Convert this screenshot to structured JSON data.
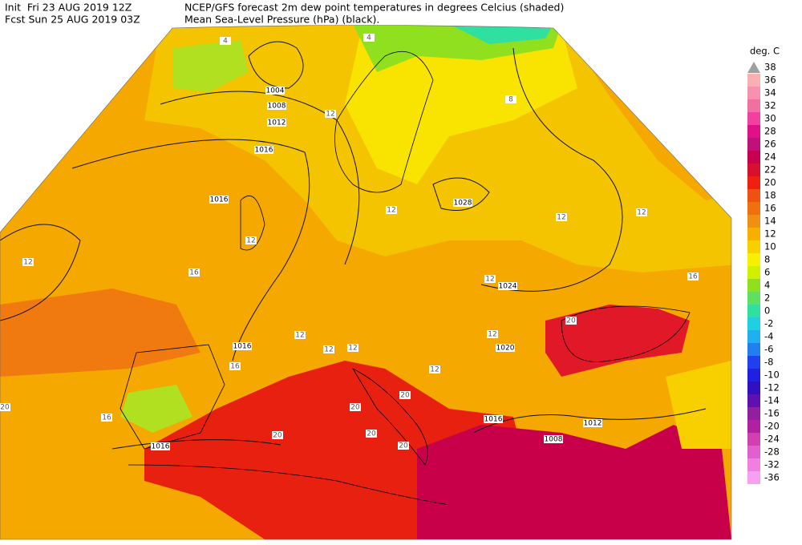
{
  "header": {
    "init": "Init  Fri 23 AUG 2019 12Z",
    "fcst": "Fcst Sun 25 AUG 2019 03Z",
    "title": "NCEP/GFS forecast 2m dew point temperatures in degrees Celcius (shaded)",
    "subtitle": "Mean Sea-Level Pressure (hPa) (black)."
  },
  "legend": {
    "unit": "deg. C",
    "levels": [
      {
        "label": "38",
        "color": "#a0a0a0"
      },
      {
        "label": "36",
        "color": "#f8b0b0"
      },
      {
        "label": "34",
        "color": "#f890b0"
      },
      {
        "label": "32",
        "color": "#f070a0"
      },
      {
        "label": "30",
        "color": "#f040a0"
      },
      {
        "label": "28",
        "color": "#e01088"
      },
      {
        "label": "26",
        "color": "#c0107a"
      },
      {
        "label": "24",
        "color": "#c80050"
      },
      {
        "label": "22",
        "color": "#d81030"
      },
      {
        "label": "20",
        "color": "#f02010"
      },
      {
        "label": "18",
        "color": "#f05010"
      },
      {
        "label": "16",
        "color": "#f07010"
      },
      {
        "label": "14",
        "color": "#f09010"
      },
      {
        "label": "12",
        "color": "#f8b000"
      },
      {
        "label": "10",
        "color": "#f8d000"
      },
      {
        "label": "8",
        "color": "#f8f000"
      },
      {
        "label": "6",
        "color": "#d0f000"
      },
      {
        "label": "4",
        "color": "#90e020"
      },
      {
        "label": "2",
        "color": "#60e060"
      },
      {
        "label": "0",
        "color": "#30e0a0"
      },
      {
        "label": "-2",
        "color": "#20d0e0"
      },
      {
        "label": "-4",
        "color": "#20b0f0"
      },
      {
        "label": "-6",
        "color": "#2080f0"
      },
      {
        "label": "-8",
        "color": "#2040f0"
      },
      {
        "label": "-10",
        "color": "#2020e0"
      },
      {
        "label": "-12",
        "color": "#3010c0"
      },
      {
        "label": "-14",
        "color": "#6010b0"
      },
      {
        "label": "-16",
        "color": "#9020a0"
      },
      {
        "label": "-20",
        "color": "#b020a0"
      },
      {
        "label": "-24",
        "color": "#d040b0"
      },
      {
        "label": "-28",
        "color": "#e060d0"
      },
      {
        "label": "-32",
        "color": "#f080e0"
      },
      {
        "label": "-36",
        "color": "#f8a0f0"
      }
    ]
  },
  "map": {
    "isobar_labels": [
      "1004",
      "1008",
      "1012",
      "1016",
      "1016",
      "1028",
      "1024",
      "1020",
      "1016",
      "1016",
      "1012",
      "1008",
      "1016"
    ],
    "dewpoint_labels": [
      "12",
      "12",
      "12",
      "12",
      "12",
      "12",
      "12",
      "12",
      "12",
      "12",
      "12",
      "12",
      "16",
      "16",
      "16",
      "16",
      "20",
      "20",
      "20",
      "20",
      "20",
      "20",
      "20",
      "8",
      "4",
      "4"
    ]
  }
}
